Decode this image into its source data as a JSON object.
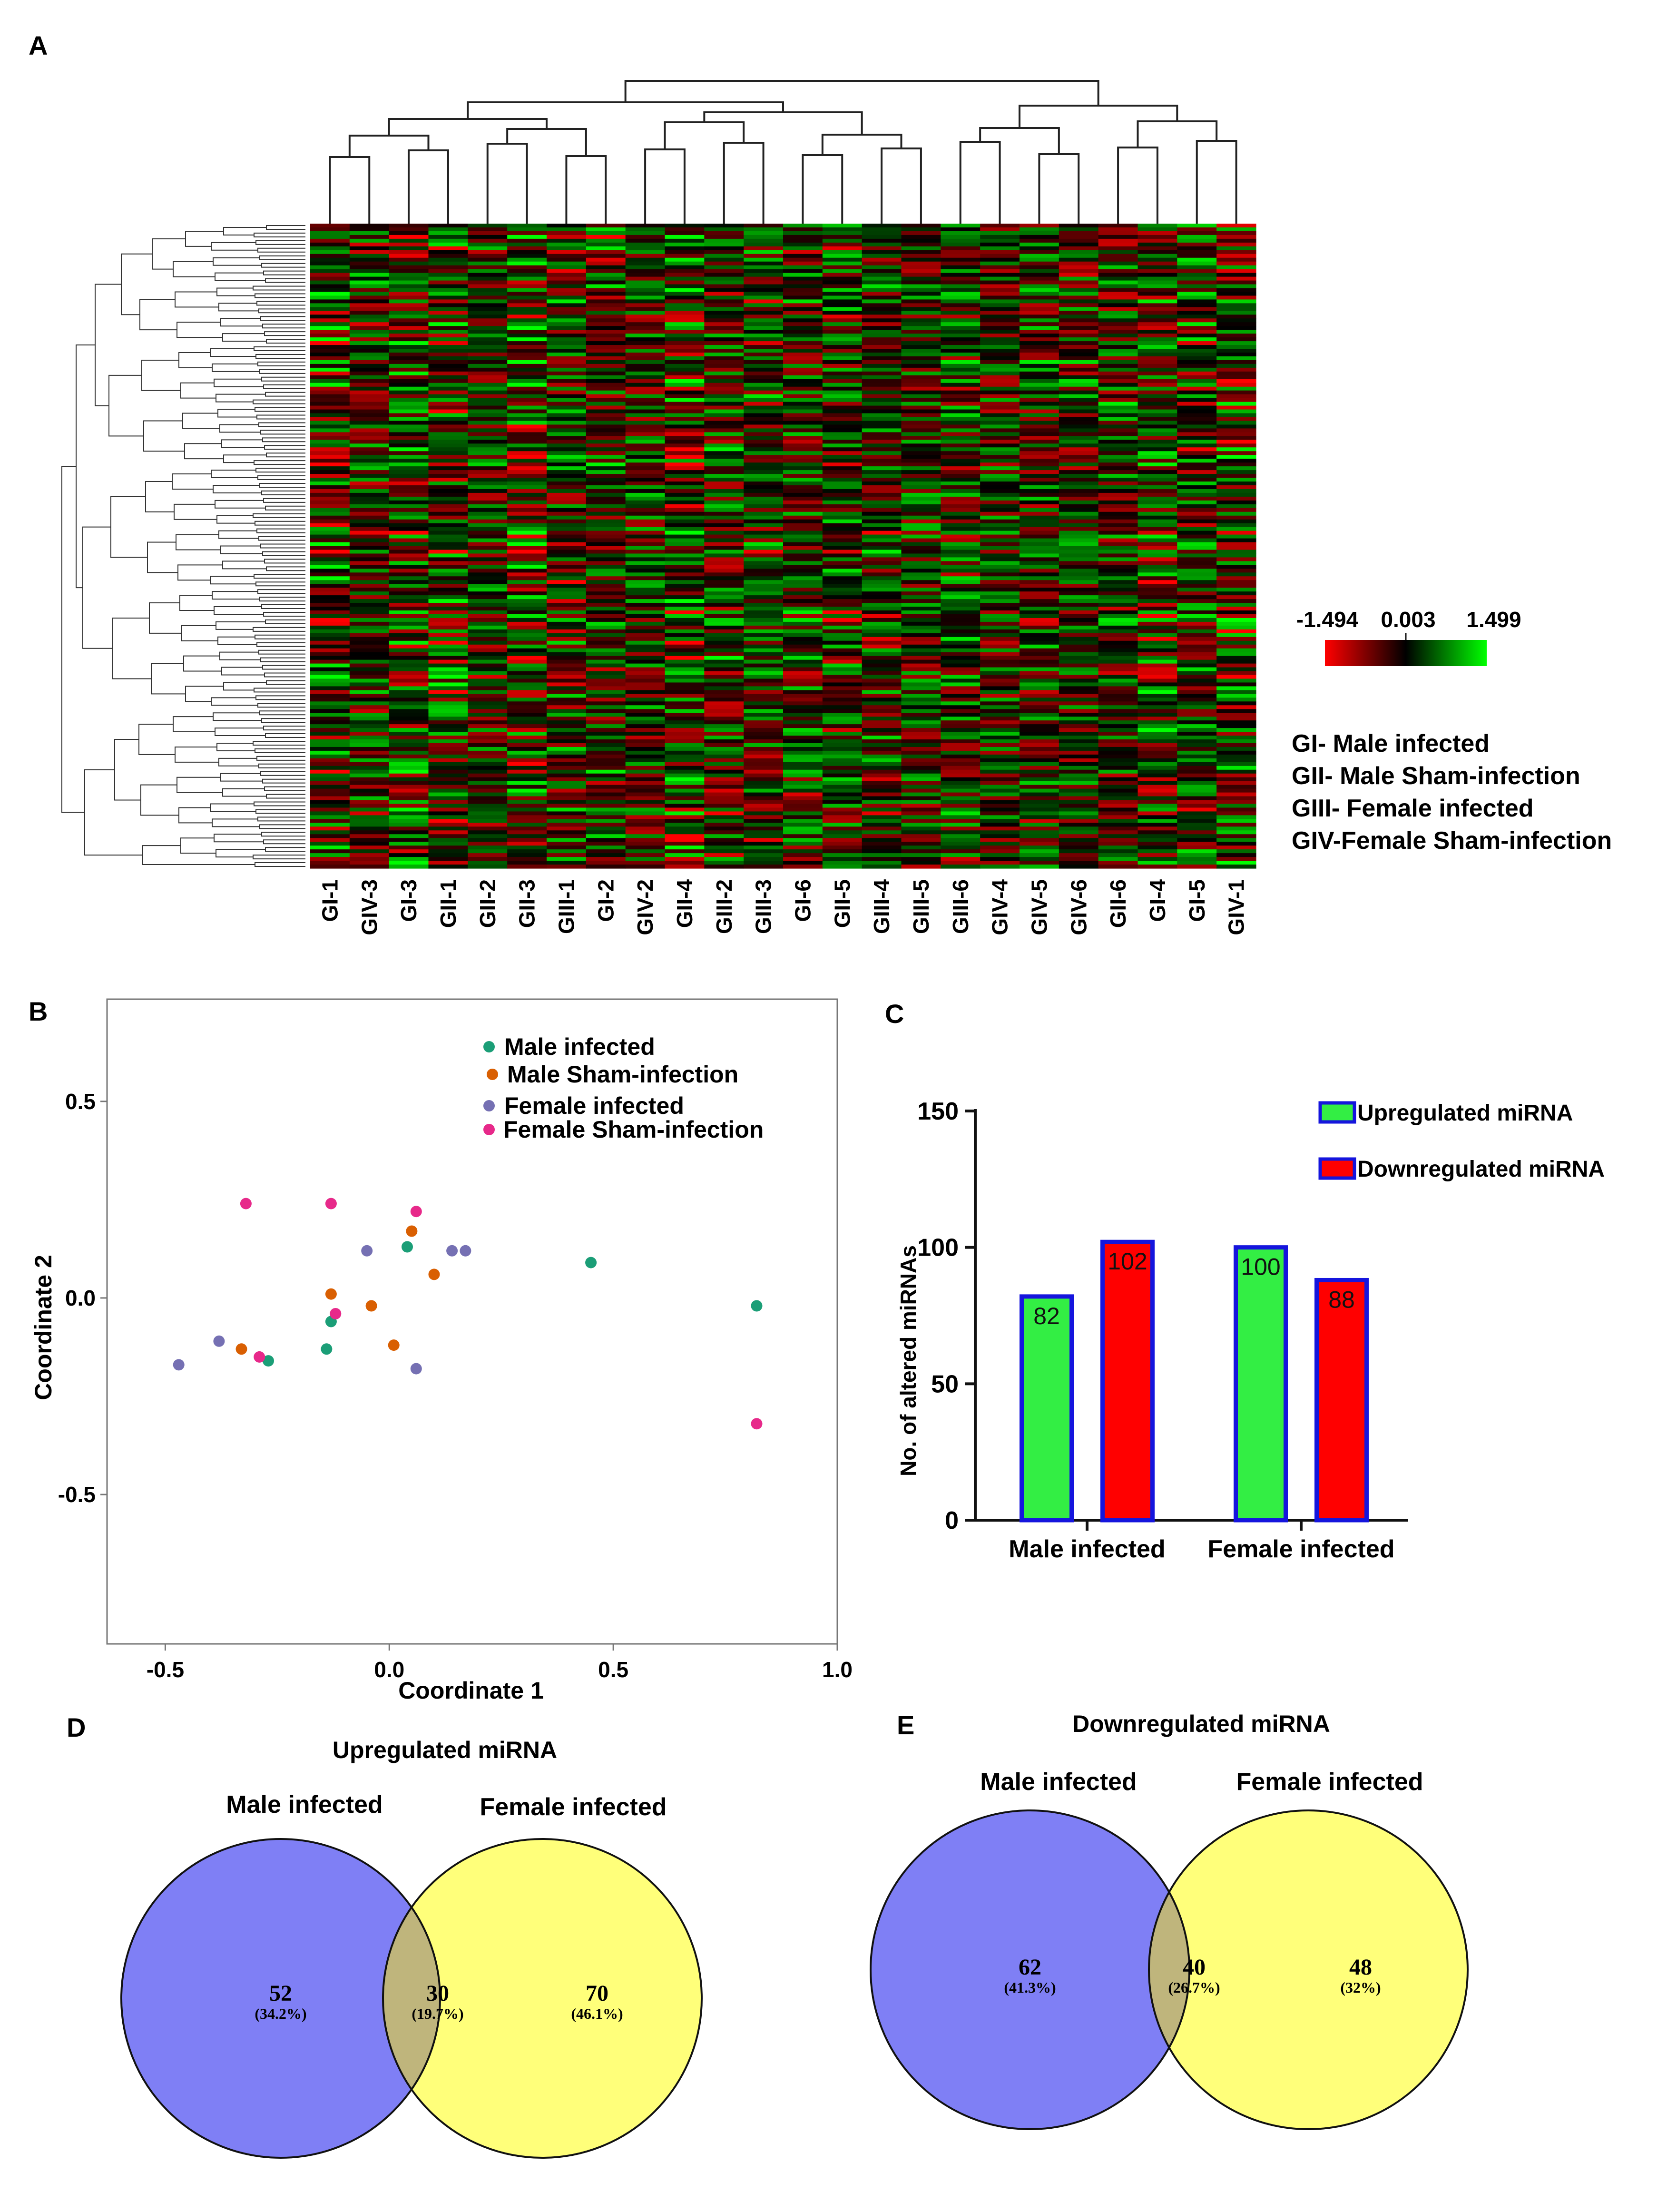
{
  "panels": {
    "a": "A",
    "b": "B",
    "c": "C",
    "d": "D",
    "e": "E"
  },
  "colors": {
    "heat_low": "#ff0000",
    "heat_mid": "#000000",
    "heat_high": "#00ff00",
    "male_infected": "#1b9e77",
    "male_sham": "#d95f02",
    "female_infected": "#7570b3",
    "female_sham": "#e7298a",
    "bar_up": "#33ee44",
    "bar_down": "#ff0000",
    "bar_border": "#1515dd",
    "venn_male": "#7f7ff5",
    "venn_female": "#ffff7a",
    "venn_overlap": "#bfb57c"
  },
  "chart_data": [
    {
      "panel": "A",
      "type": "heatmap",
      "columns": [
        "GI-1",
        "GIV-3",
        "GI-3",
        "GII-1",
        "GII-2",
        "GII-3",
        "GIII-1",
        "GI-2",
        "GIV-2",
        "GII-4",
        "GIII-2",
        "GIII-3",
        "GI-6",
        "GII-5",
        "GIII-4",
        "GIII-5",
        "GIII-6",
        "GIV-4",
        "GIV-5",
        "GIV-6",
        "GII-6",
        "GI-4",
        "GI-5",
        "GIV-1"
      ],
      "rows": 170,
      "color_scale": {
        "min": -1.494,
        "mid": 0.003,
        "max": 1.499
      },
      "scale_labels": [
        "-1.494",
        "0.003",
        "1.499"
      ],
      "legend_lines": [
        "GI- Male infected",
        "GII- Male Sham-infection",
        "GIII- Female infected",
        "GIV-Female Sham-infection"
      ]
    },
    {
      "panel": "B",
      "type": "scatter",
      "xlabel": "Coordinate 1",
      "ylabel": "Coordinate 2",
      "xlim": [
        -0.63,
        1.0
      ],
      "ylim": [
        -0.88,
        0.76
      ],
      "xticks": [
        "-0.5",
        "0.0",
        "0.5",
        "1.0"
      ],
      "yticks": [
        "0.5",
        "0.0",
        "-0.5"
      ],
      "legend_placement": "top-right",
      "series": [
        {
          "name": "Male infected",
          "color": "#1b9e77",
          "points": [
            [
              -0.27,
              -0.16
            ],
            [
              -0.13,
              -0.06
            ],
            [
              -0.14,
              -0.13
            ],
            [
              0.04,
              0.13
            ],
            [
              0.45,
              0.09
            ],
            [
              0.82,
              -0.02
            ]
          ]
        },
        {
          "name": "Male Sham-infection",
          "color": "#d95f02",
          "points": [
            [
              -0.33,
              -0.13
            ],
            [
              -0.13,
              0.01
            ],
            [
              -0.04,
              -0.02
            ],
            [
              0.05,
              0.17
            ],
            [
              0.1,
              0.06
            ],
            [
              0.01,
              -0.12
            ]
          ]
        },
        {
          "name": "Female infected",
          "color": "#7570b3",
          "points": [
            [
              -0.47,
              -0.17
            ],
            [
              -0.38,
              -0.11
            ],
            [
              -0.05,
              0.12
            ],
            [
              0.14,
              0.12
            ],
            [
              0.17,
              0.12
            ],
            [
              0.06,
              -0.18
            ]
          ]
        },
        {
          "name": "Female Sham-infection",
          "color": "#e7298a",
          "points": [
            [
              -0.32,
              0.24
            ],
            [
              -0.13,
              0.24
            ],
            [
              0.06,
              0.22
            ],
            [
              -0.12,
              -0.04
            ],
            [
              -0.29,
              -0.15
            ],
            [
              0.82,
              -0.32
            ]
          ]
        }
      ]
    },
    {
      "panel": "C",
      "type": "bar",
      "categories": [
        "Male infected",
        "Female infected"
      ],
      "series": [
        {
          "name": "Upregulated miRNA",
          "color": "#33ee44",
          "values": [
            82,
            100
          ]
        },
        {
          "name": "Downregulated miRNA",
          "color": "#ff0000",
          "values": [
            102,
            88
          ]
        }
      ],
      "ylabel": "No. of altered miRNAs",
      "ylim": [
        0,
        150
      ],
      "yticks": [
        "0",
        "50",
        "100",
        "150"
      ],
      "legend_placement": "top-right"
    },
    {
      "panel": "D",
      "type": "venn",
      "title": "Upregulated miRNA",
      "sets": [
        "Male infected",
        "Female infected"
      ],
      "regions": [
        {
          "value": 52,
          "pct": "(34.2%)"
        },
        {
          "value": 30,
          "pct": "(19.7%)"
        },
        {
          "value": 70,
          "pct": "(46.1%)"
        }
      ]
    },
    {
      "panel": "E",
      "type": "venn",
      "title": "Downregulated miRNA",
      "sets": [
        "Male infected",
        "Female infected"
      ],
      "regions": [
        {
          "value": 62,
          "pct": "(41.3%)"
        },
        {
          "value": 40,
          "pct": "(26.7%)"
        },
        {
          "value": 48,
          "pct": "(32%)"
        }
      ]
    }
  ]
}
